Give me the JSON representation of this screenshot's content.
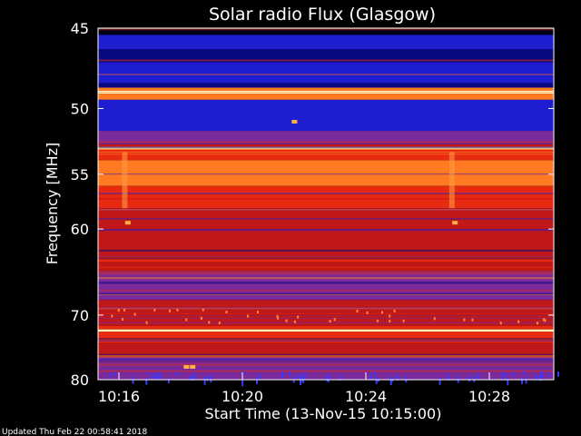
{
  "chart_data": {
    "type": "heatmap",
    "title": "Solar radio Flux (Glasgow)",
    "xlabel": "Start Time (13-Nov-15 10:15:00)",
    "ylabel": "Frequency [MHz]",
    "x_ticks": [
      "10:16",
      "10:20",
      "10:24",
      "10:28"
    ],
    "y_ticks": [
      "45",
      "50",
      "55",
      "60",
      "70",
      "80"
    ],
    "grid": false,
    "colormap": [
      "#00001a",
      "#0a0a80",
      "#1e1ed0",
      "#7a2a9a",
      "#c01818",
      "#e82a10",
      "#ff7a20",
      "#ffd070",
      "#fff4c0"
    ]
  },
  "footer": {
    "updated": "Updated Thu Feb 22 00:58:41 2018"
  }
}
